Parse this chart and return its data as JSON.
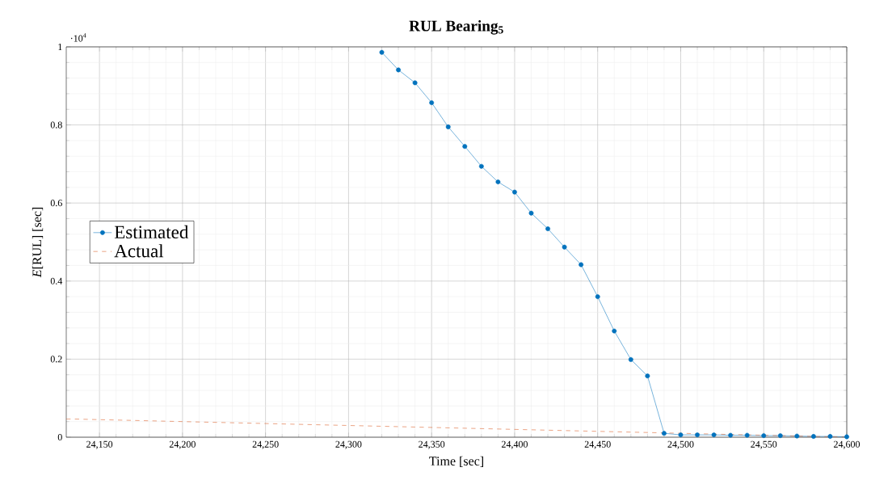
{
  "chart_data": {
    "type": "line",
    "title": "RUL Bearing$_{5}$",
    "xlabel": "Time [sec]",
    "ylabel": "*E*[RUL] [sec]",
    "annotations": [
      "·10$^{4}$"
    ],
    "xlim": [
      24130,
      24600
    ],
    "ylim": [
      0,
      1
    ],
    "xticks": [
      {
        "value": 24150,
        "label": "24,150"
      },
      {
        "value": 24200,
        "label": "24,200"
      },
      {
        "value": 24250,
        "label": "24,250"
      },
      {
        "value": 24300,
        "label": "24,300"
      },
      {
        "value": 24350,
        "label": "24,350"
      },
      {
        "value": 24400,
        "label": "24,400"
      },
      {
        "value": 24450,
        "label": "24,450"
      },
      {
        "value": 24500,
        "label": "24,500"
      },
      {
        "value": 24550,
        "label": "24,550"
      },
      {
        "value": 24600,
        "label": "24,600"
      }
    ],
    "yticks": [
      0,
      0.2,
      0.4,
      0.6,
      0.8,
      1
    ],
    "grid": true,
    "legend": "left",
    "series": [
      {
        "name": "Estimated",
        "color": "#0072bd",
        "marker": "circle",
        "line_style": "solid",
        "x": [
          24320,
          24330,
          24340,
          24350,
          24360,
          24370,
          24380,
          24390,
          24400,
          24410,
          24420,
          24430,
          24440,
          24450,
          24460,
          24470,
          24480,
          24490,
          24500,
          24510,
          24520,
          24530,
          24540,
          24550,
          24560,
          24570,
          24580,
          24590,
          24600
        ],
        "values": [
          0.986,
          0.941,
          0.908,
          0.857,
          0.795,
          0.745,
          0.694,
          0.654,
          0.628,
          0.574,
          0.534,
          0.487,
          0.442,
          0.36,
          0.272,
          0.199,
          0.157,
          0.01,
          0.006,
          0.006,
          0.006,
          0.005,
          0.005,
          0.004,
          0.004,
          0.003,
          0.002,
          0.002,
          0.001
        ]
      },
      {
        "name": "Actual",
        "color": "#d95319",
        "marker": "none",
        "line_style": "dashed",
        "x": [
          24130,
          24600
        ],
        "values": [
          0.047,
          0
        ]
      }
    ]
  }
}
